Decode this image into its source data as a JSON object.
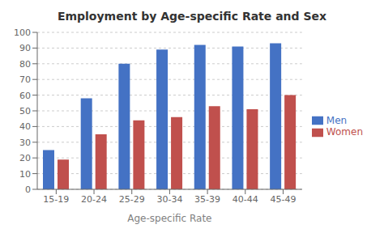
{
  "chart_data": {
    "type": "bar",
    "title": "Employment by Age-specific Rate and Sex",
    "x_label": "Age-specific Rate",
    "categories": [
      "15-19",
      "20-24",
      "25-29",
      "30-34",
      "35-39",
      "40-44",
      "45-49"
    ],
    "series": [
      {
        "name": "Men",
        "color": "#4472C4",
        "values": [
          25,
          58,
          80,
          89,
          92,
          91,
          93
        ]
      },
      {
        "name": "Women",
        "color": "#C0504D",
        "values": [
          19,
          35,
          44,
          46,
          53,
          51,
          60
        ]
      }
    ],
    "ylim": [
      0,
      100
    ],
    "yticks": [
      0,
      10,
      20,
      30,
      40,
      50,
      60,
      70,
      80,
      90,
      100
    ],
    "grid": true,
    "legend": "right"
  }
}
